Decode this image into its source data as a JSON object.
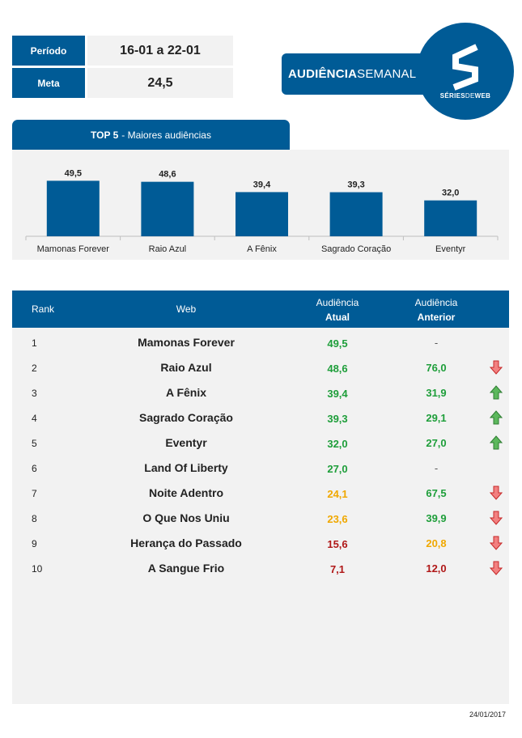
{
  "info": {
    "period_label": "Período",
    "period_value": "16-01 a 22-01",
    "goal_label": "Meta",
    "goal_value": "24,5"
  },
  "brand": {
    "title_bold": "AUDIÊNCIA",
    "title_thin": "SEMANAL",
    "logo_text_a": "SÉRIES",
    "logo_text_b": "DE",
    "logo_text_c": "WEB",
    "accent_color": "#005b96"
  },
  "top5": {
    "title_bold": "TOP 5",
    "title_rest": "- Maiores audiências"
  },
  "chart_data": {
    "type": "bar",
    "title": "TOP 5 - Maiores audiências",
    "categories": [
      "Mamonas Forever",
      "Raio Azul",
      "A Fênix",
      "Sagrado Coração",
      "Eventyr"
    ],
    "values": [
      49.5,
      48.6,
      39.4,
      39.3,
      32.0
    ],
    "value_labels": [
      "49,5",
      "48,6",
      "39,4",
      "39,3",
      "32,0"
    ],
    "bar_color": "#005b96",
    "ylim": [
      0,
      70
    ],
    "grid": false
  },
  "ranking": {
    "headers": {
      "rank": "Rank",
      "web": "Web",
      "current_1": "Audiência",
      "current_2": "Atual",
      "previous_1": "Audiência",
      "previous_2": "Anterior"
    },
    "rows": [
      {
        "rank": "1",
        "web": "Mamonas Forever",
        "current": "49,5",
        "current_color": "green",
        "previous": "-",
        "previous_color": "green",
        "trend": "none"
      },
      {
        "rank": "2",
        "web": "Raio Azul",
        "current": "48,6",
        "current_color": "green",
        "previous": "76,0",
        "previous_color": "green",
        "trend": "down"
      },
      {
        "rank": "3",
        "web": "A Fênix",
        "current": "39,4",
        "current_color": "green",
        "previous": "31,9",
        "previous_color": "green",
        "trend": "up"
      },
      {
        "rank": "4",
        "web": "Sagrado Coração",
        "current": "39,3",
        "current_color": "green",
        "previous": "29,1",
        "previous_color": "green",
        "trend": "up"
      },
      {
        "rank": "5",
        "web": "Eventyr",
        "current": "32,0",
        "current_color": "green",
        "previous": "27,0",
        "previous_color": "green",
        "trend": "up"
      },
      {
        "rank": "6",
        "web": "Land Of Liberty",
        "current": "27,0",
        "current_color": "green",
        "previous": "-",
        "previous_color": "green",
        "trend": "none"
      },
      {
        "rank": "7",
        "web": "Noite Adentro",
        "current": "24,1",
        "current_color": "orange",
        "previous": "67,5",
        "previous_color": "green",
        "trend": "down"
      },
      {
        "rank": "8",
        "web": "O Que Nos Uniu",
        "current": "23,6",
        "current_color": "orange",
        "previous": "39,9",
        "previous_color": "green",
        "trend": "down"
      },
      {
        "rank": "9",
        "web": "Herança do Passado",
        "current": "15,6",
        "current_color": "red",
        "previous": "20,8",
        "previous_color": "orange",
        "trend": "down"
      },
      {
        "rank": "10",
        "web": "A Sangue Frio",
        "current": "7,1",
        "current_color": "red",
        "previous": "12,0",
        "previous_color": "red",
        "trend": "down"
      }
    ]
  },
  "footer": {
    "date": "24/01/2017"
  }
}
